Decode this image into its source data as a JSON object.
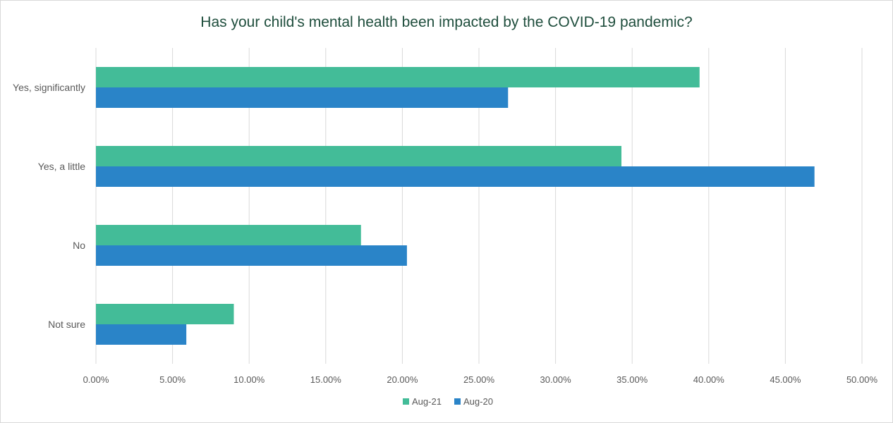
{
  "chart_data": {
    "type": "bar",
    "orientation": "horizontal",
    "title": "Has your child's mental health been impacted by the COVID-19 pandemic?",
    "categories": [
      "Yes, significantly",
      "Yes, a little",
      "No",
      "Not sure"
    ],
    "series": [
      {
        "name": "Aug-21",
        "color": "#43bc98",
        "values": [
          39.4,
          34.3,
          17.3,
          9.0
        ]
      },
      {
        "name": "Aug-20",
        "color": "#2a84c8",
        "values": [
          26.9,
          46.9,
          20.3,
          5.9
        ]
      }
    ],
    "x_ticks": [
      "0.00%",
      "5.00%",
      "10.00%",
      "15.00%",
      "20.00%",
      "25.00%",
      "30.00%",
      "35.00%",
      "40.00%",
      "45.00%",
      "50.00%"
    ],
    "xlim": [
      0,
      50
    ],
    "grid": true,
    "legend_position": "bottom",
    "colors": {
      "title": "#1f4e3d",
      "grid": "#d9d9d9",
      "text": "#595959"
    }
  }
}
